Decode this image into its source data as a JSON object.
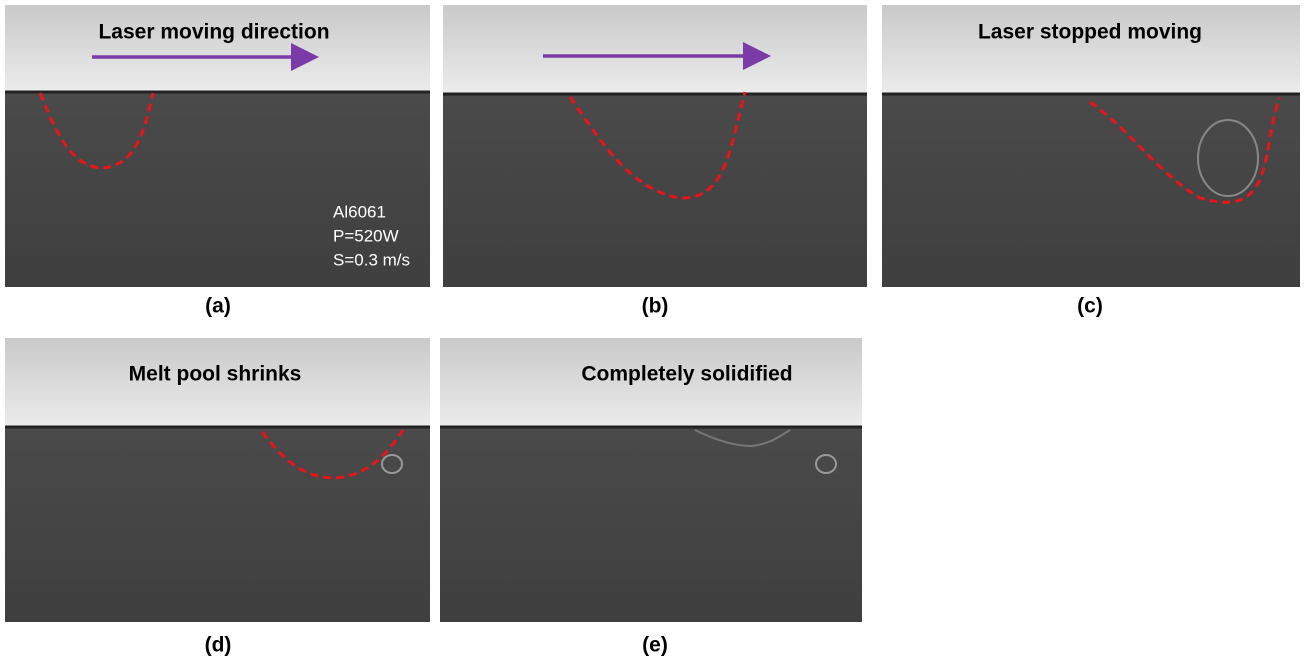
{
  "panels": [
    {
      "title": "Laser moving direction",
      "label": "(a)",
      "info": [
        "Al6061",
        "P=520W",
        "S=0.3 m/s"
      ]
    },
    {
      "label": "(b)"
    },
    {
      "title": "Laser stopped moving",
      "label": "(c)"
    },
    {
      "title": "Melt pool shrinks",
      "label": "(d)"
    },
    {
      "title": "Completely solidified",
      "label": "(e)"
    }
  ]
}
